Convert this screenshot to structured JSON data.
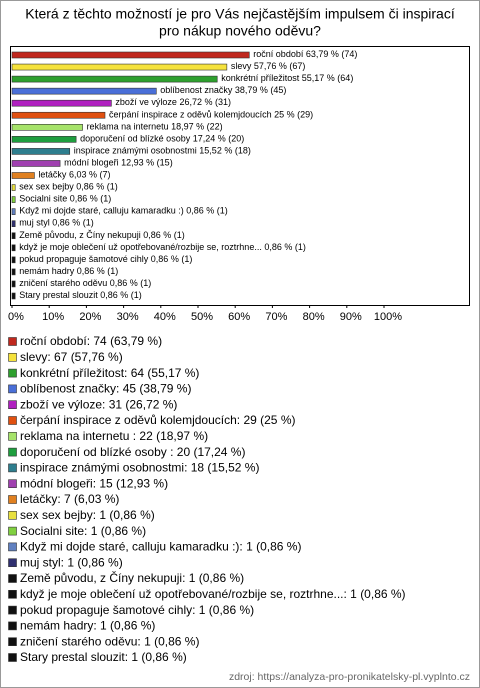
{
  "chart_data": {
    "type": "hbar",
    "title": [
      "Která z těchto možností je pro Vás nejčastějším impulsem či inspirací",
      "pro nákup nového oděvu?"
    ],
    "categories": [
      "roční období",
      "slevy",
      "konkrétní příležitost",
      "oblíbenost značky",
      "zboží ve výloze",
      "čerpání inspirace z oděvů kolemjdoucích",
      "reklama na internetu",
      "doporučení od blízké osoby",
      "inspirace známými osobnostmi",
      "módní blogeři",
      "letáčky",
      "sex sex bejby",
      "Socialni site",
      "Když mi dojde staré, calluju kamaradku :)",
      "muj styl",
      "Země původu, z Číny nekupuji",
      "když je moje oblečení už opotřebované/rozbije se, roztrhne...",
      "pokud propaguje šamotové cihly",
      "nemám hadry",
      "zničení starého oděvu",
      "Stary prestal slouzit"
    ],
    "values": [
      63.79,
      57.76,
      55.17,
      38.79,
      26.72,
      25,
      18.97,
      17.24,
      15.52,
      12.93,
      6.03,
      0.86,
      0.86,
      0.86,
      0.86,
      0.86,
      0.86,
      0.86,
      0.86,
      0.86,
      0.86
    ],
    "value_labels": [
      "63,79 % (74)",
      "57,76 % (67)",
      "55,17 % (64)",
      "38,79 % (45)",
      "26,72 % (31)",
      "25 % (29)",
      "18,97 % (22)",
      "17,24 % (20)",
      "15,52 % (18)",
      "12,93 % (15)",
      "6,03 % (7)",
      "0,86 % (1)",
      "0,86 % (1)",
      "0,86 % (1)",
      "0,86 % (1)",
      "0,86 % (1)",
      "0,86 % (1)",
      "0,86 % (1)",
      "0,86 % (1)",
      "0,86 % (1)",
      "0,86 % (1)"
    ],
    "legend_labels": [
      "roční období: 74 (63,79 %)",
      "slevy: 67 (57,76 %)",
      "konkrétní příležitost: 64 (55,17 %)",
      "oblíbenost značky: 45 (38,79 %)",
      "zboží ve výloze: 31 (26,72 %)",
      "čerpání inspirace z oděvů kolemjdoucích: 29 (25 %)",
      "reklama na internetu : 22 (18,97 %)",
      "doporučení od blízké osoby : 20 (17,24 %)",
      "inspirace známými osobnostmi: 18 (15,52 %)",
      "módní blogeři: 15 (12,93 %)",
      "letáčky: 7 (6,03 %)",
      "sex sex bejby: 1 (0,86 %)",
      "Socialni site: 1 (0,86 %)",
      "Když mi dojde staré, calluju kamaradku :): 1 (0,86 %)",
      "muj styl: 1 (0,86 %)",
      "Země původu, z Číny nekupuji: 1 (0,86 %)",
      "když je moje oblečení už opotřebované/rozbije se, roztrhne...: 1 (0,86 %)",
      "pokud propaguje šamotové cihly: 1 (0,86 %)",
      "nemám hadry: 1 (0,86 %)",
      "zničení starého oděvu: 1 (0,86 %)",
      "Stary prestal slouzit: 1 (0,86 %)"
    ],
    "colors": [
      "#c0281e",
      "#f5e23c",
      "#2ea02e",
      "#4a6fd8",
      "#b020c0",
      "#e05010",
      "#a6e36a",
      "#1e9e3e",
      "#2e7e8e",
      "#a040b0",
      "#e08020",
      "#e8e040",
      "#80d040",
      "#6080c0",
      "#303070",
      "#111111",
      "#111111",
      "#111111",
      "#111111",
      "#111111",
      "#111111"
    ],
    "xlim": [
      0,
      100
    ],
    "xticks": [
      {
        "value": 0,
        "label": "0%"
      },
      {
        "value": 10,
        "label": "10%"
      },
      {
        "value": 20,
        "label": "20%"
      },
      {
        "value": 30,
        "label": "30%"
      },
      {
        "value": 40,
        "label": "40%"
      },
      {
        "value": 50,
        "label": "50%"
      },
      {
        "value": 60,
        "label": "60%"
      },
      {
        "value": 70,
        "label": "70%"
      },
      {
        "value": 80,
        "label": "80%"
      },
      {
        "value": 90,
        "label": "90%"
      },
      {
        "value": 100,
        "label": "100%"
      }
    ],
    "source": "zdroj: https://analyza-pro-pronikatelsky-pl.vyplnto.cz"
  }
}
